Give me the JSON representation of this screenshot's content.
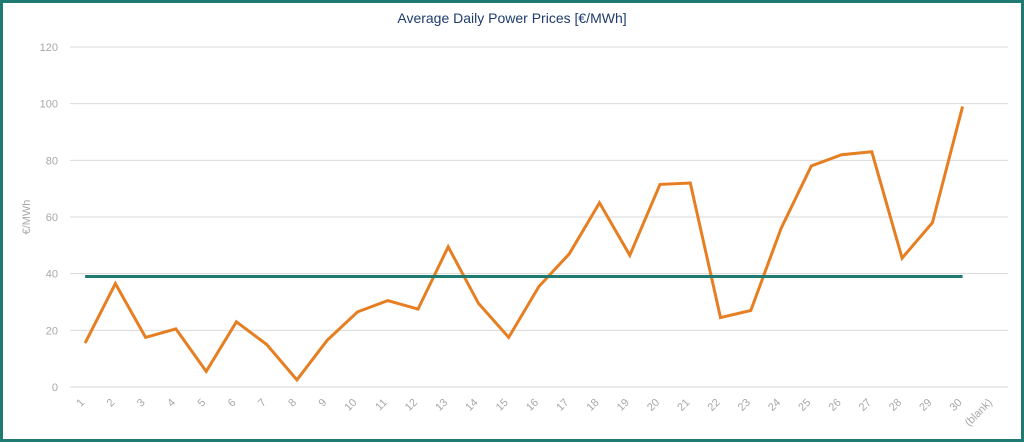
{
  "chart_data": {
    "type": "line",
    "title": "Average Daily Power Prices [€/MWh]",
    "ylabel": "€/MWh",
    "xlabel": "",
    "ylim": [
      0,
      120
    ],
    "yticks": [
      0,
      20,
      40,
      60,
      80,
      100,
      120
    ],
    "grid": true,
    "categories": [
      "1",
      "2",
      "3",
      "4",
      "5",
      "6",
      "7",
      "8",
      "9",
      "10",
      "11",
      "12",
      "13",
      "14",
      "15",
      "16",
      "17",
      "18",
      "19",
      "20",
      "21",
      "22",
      "23",
      "24",
      "25",
      "26",
      "27",
      "28",
      "29",
      "30",
      "(blank)"
    ],
    "series": [
      {
        "values": [
          15.5,
          36.5,
          17.5,
          20.5,
          5.5,
          23,
          15,
          2.5,
          16.5,
          26.5,
          30.5,
          27.5,
          49.5,
          29.5,
          17.5,
          35.5,
          47,
          65,
          46.5,
          71.5,
          72,
          24.5,
          27,
          56,
          78,
          82,
          83,
          45.5,
          58,
          99,
          null
        ],
        "color": "#e67e22"
      },
      {
        "values": [
          39,
          39,
          39,
          39,
          39,
          39,
          39,
          39,
          39,
          39,
          39,
          39,
          39,
          39,
          39,
          39,
          39,
          39,
          39,
          39,
          39,
          39,
          39,
          39,
          39,
          39,
          39,
          39,
          39,
          39,
          null
        ],
        "color": "#1f7a72"
      }
    ]
  }
}
